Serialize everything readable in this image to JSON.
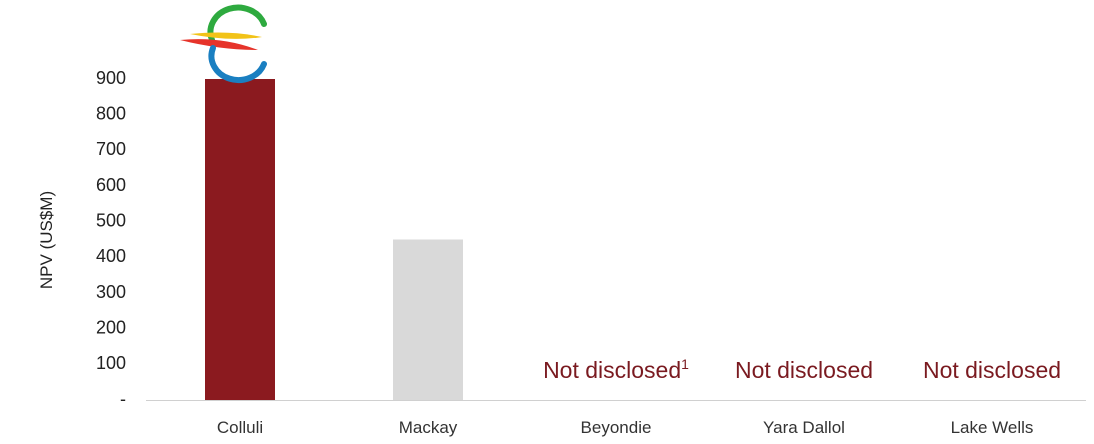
{
  "chart_data": {
    "type": "bar",
    "categories": [
      "Colluli",
      "Mackay",
      "Beyondie",
      "Yara Dallol",
      "Lake Wells"
    ],
    "values": [
      900,
      450,
      null,
      null,
      null
    ],
    "bar_colors": [
      "#8b1a1f",
      "#d9d9d9",
      null,
      null,
      null
    ],
    "ylabel": "NPV (US$M)",
    "ylim": [
      0,
      900
    ],
    "yticks": [
      0,
      100,
      200,
      300,
      400,
      500,
      600,
      700,
      800,
      900
    ],
    "ytick_labels": [
      "-",
      "100",
      "200",
      "300",
      "400",
      "500",
      "600",
      "700",
      "800",
      "900"
    ],
    "annotations": [
      {
        "category": "Beyondie",
        "text": "Not disclosed",
        "superscript": "1"
      },
      {
        "category": "Yara Dallol",
        "text": "Not disclosed",
        "superscript": ""
      },
      {
        "category": "Lake Wells",
        "text": "Not disclosed",
        "superscript": ""
      }
    ],
    "annotation_color": "#7a1a20",
    "grid": false,
    "legend": "none",
    "logo": {
      "category": "Colluli",
      "name": "colluli-logo",
      "colors": [
        "#2eaa3f",
        "#f2c318",
        "#e6332a",
        "#1a7fc1"
      ]
    }
  }
}
